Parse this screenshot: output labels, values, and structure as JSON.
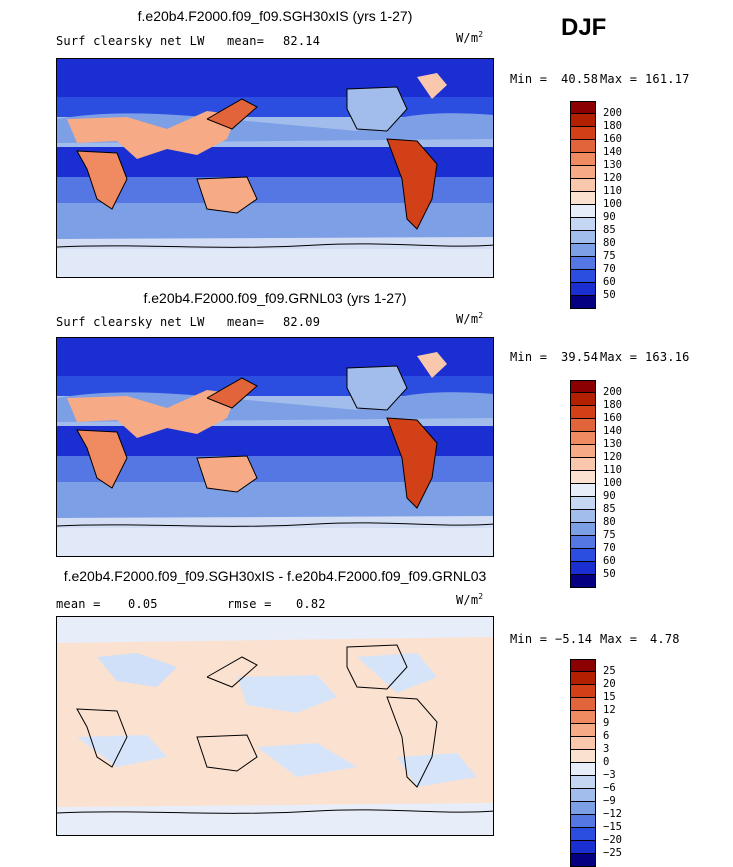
{
  "season": "DJF",
  "panels": [
    {
      "title": "f.e20b4.F2000.f09_f09.SGH30xIS (yrs 1-27)",
      "subtitle_left": "Surf clearsky net LW",
      "mean_label": "mean=",
      "mean_value": "82.14",
      "units": "W/m",
      "units_exp": "2",
      "min_label": "Min =",
      "min_value": "40.58",
      "max_label": "Max =",
      "max_value": "161.17",
      "levels": [
        "200",
        "180",
        "160",
        "140",
        "130",
        "120",
        "110",
        "100",
        "90",
        "85",
        "80",
        "75",
        "70",
        "60",
        "50"
      ],
      "colors": [
        "#8b0000",
        "#b22000",
        "#d14016",
        "#e2643a",
        "#f08a60",
        "#f6aa86",
        "#f9c8ac",
        "#fbe1d0",
        "#e8eef9",
        "#c4d6f2",
        "#a2bcec",
        "#7d9fe6",
        "#5577e3",
        "#2c4ee0",
        "#1a2ed2",
        "#050082"
      ]
    },
    {
      "title": "f.e20b4.F2000.f09_f09.GRNL03 (yrs 1-27)",
      "subtitle_left": "Surf clearsky net LW",
      "mean_label": "mean=",
      "mean_value": "82.09",
      "units": "W/m",
      "units_exp": "2",
      "min_label": "Min =",
      "min_value": "39.54",
      "max_label": "Max =",
      "max_value": "163.16",
      "levels": [
        "200",
        "180",
        "160",
        "140",
        "130",
        "120",
        "110",
        "100",
        "90",
        "85",
        "80",
        "75",
        "70",
        "60",
        "50"
      ],
      "colors": [
        "#8b0000",
        "#b22000",
        "#d14016",
        "#e2643a",
        "#f08a60",
        "#f6aa86",
        "#f9c8ac",
        "#fbe1d0",
        "#e8eef9",
        "#c4d6f2",
        "#a2bcec",
        "#7d9fe6",
        "#5577e3",
        "#2c4ee0",
        "#1a2ed2",
        "#050082"
      ]
    },
    {
      "title": "f.e20b4.F2000.f09_f09.SGH30xIS - f.e20b4.F2000.f09_f09.GRNL03",
      "subtitle_left": "mean =",
      "mean_label": "",
      "mean_value": "0.05",
      "rmse_label": "rmse =",
      "rmse_value": "0.82",
      "units": "W/m",
      "units_exp": "2",
      "min_label": "Min =",
      "min_value": "−5.14",
      "max_label": "Max =",
      "max_value": "4.78",
      "levels": [
        "25",
        "20",
        "15",
        "12",
        "9",
        "6",
        "3",
        "0",
        "−3",
        "−6",
        "−9",
        "−12",
        "−15",
        "−20",
        "−25"
      ],
      "colors": [
        "#8b0000",
        "#b22000",
        "#d14016",
        "#e2643a",
        "#f08a60",
        "#f6aa86",
        "#f9c8ac",
        "#fbe1d0",
        "#e8eef9",
        "#c4d6f2",
        "#a2bcec",
        "#7d9fe6",
        "#5577e3",
        "#2c4ee0",
        "#1a2ed2",
        "#050082"
      ]
    }
  ]
}
